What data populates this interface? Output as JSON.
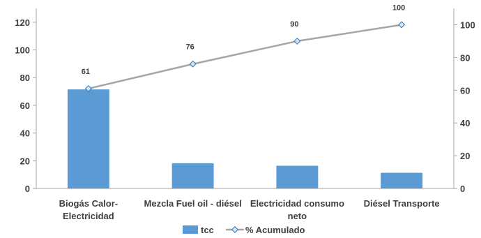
{
  "chart_data": {
    "type": "bar",
    "title": "",
    "categories": [
      [
        "Biogás Calor-",
        "Electricidad"
      ],
      [
        "Mezcla Fuel oil - diésel"
      ],
      [
        "Electricidad consumo",
        "neto"
      ],
      [
        "Diésel Transporte"
      ]
    ],
    "series": [
      {
        "name": "tcc",
        "type": "bar",
        "axis": "left",
        "values": [
          71.5,
          18.2,
          16.4,
          11.3
        ],
        "color": "#5b9bd5"
      },
      {
        "name": "% Acumulado",
        "type": "line",
        "axis": "right",
        "values": [
          61,
          76,
          90,
          100
        ],
        "data_labels": [
          "61",
          "76",
          "90",
          "100"
        ],
        "color": "#a6a6a6",
        "marker_color": "#2e75b6"
      }
    ],
    "y_left": {
      "min": 0,
      "max": 130,
      "ticks": [
        0,
        20,
        40,
        60,
        80,
        100,
        120
      ]
    },
    "y_right": {
      "min": 0,
      "max": 110,
      "ticks": [
        0,
        20,
        40,
        60,
        80,
        100
      ]
    },
    "grid": false,
    "legend": {
      "placement": "bottom",
      "entries": [
        "tcc",
        "% Acumulado"
      ]
    }
  }
}
